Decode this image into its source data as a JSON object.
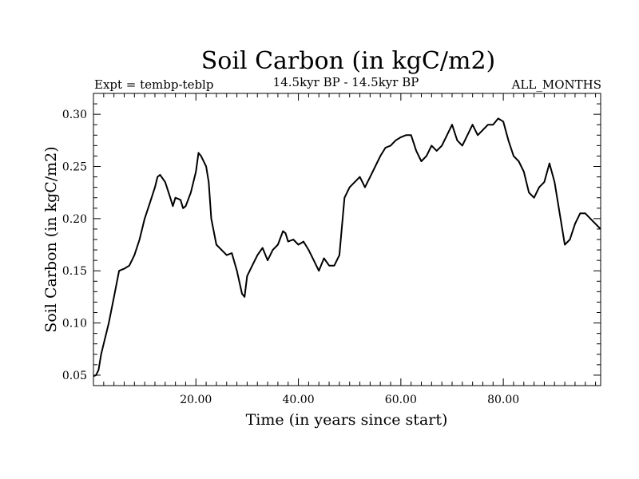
{
  "header": {
    "title": "Soil Carbon (in kgC/m2)",
    "expt": "Expt = tembp-teblp",
    "period": "14.5kyr BP - 14.5kyr BP",
    "months": "ALL_MONTHS"
  },
  "chart_data": {
    "type": "line",
    "title": "Soil Carbon (in kgC/m2)",
    "xlabel": "Time (in years since start)",
    "ylabel": "Soil Carbon (in kgC/m2)",
    "xlim": [
      0,
      99
    ],
    "ylim": [
      0.04,
      0.32
    ],
    "xticks": [
      20,
      40,
      60,
      80
    ],
    "xtick_labels": [
      "20.00",
      "40.00",
      "60.00",
      "80.00"
    ],
    "yticks": [
      0.05,
      0.1,
      0.15,
      0.2,
      0.25,
      0.3
    ],
    "ytick_labels": [
      "0.05",
      "0.10",
      "0.15",
      "0.20",
      "0.25",
      "0.30"
    ],
    "grid": false,
    "series": [
      {
        "color": "#000000",
        "x": [
          0,
          0.5,
          1,
          1.5,
          2,
          3,
          4,
          5,
          6,
          7,
          8,
          9,
          10,
          11,
          12,
          12.5,
          13,
          14,
          15,
          15.5,
          16,
          17,
          17.5,
          18,
          19,
          20,
          20.5,
          21,
          22,
          22.5,
          23,
          24,
          25,
          26,
          27,
          28,
          29,
          29.5,
          30,
          31,
          32,
          33,
          34,
          35,
          36,
          37,
          37.5,
          38,
          39,
          40,
          41,
          42,
          43,
          44,
          45,
          46,
          47,
          48,
          49,
          50,
          51,
          52,
          53,
          54,
          55,
          56,
          57,
          58,
          59,
          60,
          61,
          62,
          63,
          64,
          65,
          66,
          67,
          68,
          69,
          70,
          71,
          72,
          73,
          74,
          75,
          76,
          77,
          78,
          79,
          80,
          81,
          82,
          83,
          84,
          85,
          86,
          87,
          88,
          89,
          90,
          91,
          92,
          93,
          94,
          95,
          96,
          97,
          98,
          99
        ],
        "y": [
          0.049,
          0.05,
          0.055,
          0.07,
          0.08,
          0.1,
          0.125,
          0.15,
          0.152,
          0.155,
          0.165,
          0.18,
          0.2,
          0.215,
          0.23,
          0.24,
          0.242,
          0.235,
          0.22,
          0.212,
          0.22,
          0.218,
          0.21,
          0.212,
          0.225,
          0.245,
          0.263,
          0.26,
          0.25,
          0.235,
          0.2,
          0.175,
          0.17,
          0.165,
          0.167,
          0.15,
          0.128,
          0.125,
          0.145,
          0.155,
          0.165,
          0.172,
          0.16,
          0.17,
          0.175,
          0.188,
          0.186,
          0.178,
          0.18,
          0.175,
          0.178,
          0.17,
          0.16,
          0.15,
          0.162,
          0.155,
          0.155,
          0.165,
          0.22,
          0.23,
          0.235,
          0.24,
          0.23,
          0.24,
          0.25,
          0.26,
          0.268,
          0.27,
          0.275,
          0.278,
          0.28,
          0.28,
          0.265,
          0.255,
          0.26,
          0.27,
          0.265,
          0.27,
          0.28,
          0.29,
          0.275,
          0.27,
          0.28,
          0.29,
          0.28,
          0.285,
          0.29,
          0.29,
          0.296,
          0.293,
          0.275,
          0.26,
          0.255,
          0.245,
          0.225,
          0.22,
          0.23,
          0.235,
          0.253,
          0.235,
          0.205,
          0.175,
          0.18,
          0.195,
          0.205,
          0.205,
          0.2,
          0.195,
          0.19
        ]
      }
    ]
  }
}
